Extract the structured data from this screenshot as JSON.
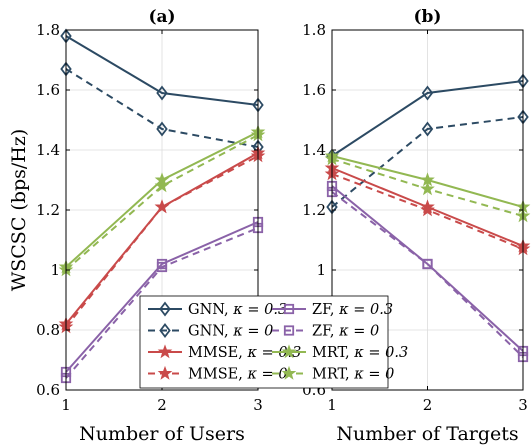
{
  "chart_data": [
    {
      "type": "line",
      "title": "(a)",
      "xlabel": "Number of Users",
      "ylabel": "WSCSC (bps/Hz)",
      "xlim": [
        1,
        3
      ],
      "ylim": [
        0.6,
        1.8
      ],
      "x": [
        1,
        2,
        3
      ],
      "xticks": [
        "1",
        "2",
        "3"
      ],
      "yticks": [
        "0.6",
        "0.8",
        "1",
        "1.2",
        "1.4",
        "1.6",
        "1.8"
      ],
      "grid": true,
      "series": [
        {
          "name": "GNN, κ = 0.3",
          "color": "#2c4a63",
          "marker": "diamond",
          "dash": false,
          "values": [
            1.78,
            1.59,
            1.55
          ]
        },
        {
          "name": "GNN, κ = 0",
          "color": "#2c4a63",
          "marker": "diamond",
          "dash": true,
          "values": [
            1.67,
            1.47,
            1.41
          ]
        },
        {
          "name": "MMSE, κ = 0.3",
          "color": "#c94a4a",
          "marker": "star",
          "dash": false,
          "values": [
            0.82,
            1.21,
            1.39
          ]
        },
        {
          "name": "MMSE, κ = 0",
          "color": "#c94a4a",
          "marker": "star",
          "dash": true,
          "values": [
            0.81,
            1.21,
            1.38
          ]
        },
        {
          "name": "ZF, κ = 0.3",
          "color": "#8a62a8",
          "marker": "square",
          "dash": false,
          "values": [
            0.66,
            1.02,
            1.16
          ]
        },
        {
          "name": "ZF, κ = 0",
          "color": "#8a62a8",
          "marker": "square",
          "dash": true,
          "values": [
            0.64,
            1.01,
            1.14
          ]
        },
        {
          "name": "MRT, κ = 0.3",
          "color": "#92b852",
          "marker": "star",
          "dash": false,
          "values": [
            1.01,
            1.3,
            1.46
          ]
        },
        {
          "name": "MRT, κ = 0",
          "color": "#92b852",
          "marker": "star",
          "dash": true,
          "values": [
            1.0,
            1.28,
            1.45
          ]
        }
      ]
    },
    {
      "type": "line",
      "title": "(b)",
      "xlabel": "Number of Targets",
      "ylabel": "",
      "xlim": [
        1,
        3
      ],
      "ylim": [
        0.6,
        1.8
      ],
      "x": [
        1,
        2,
        3
      ],
      "xticks": [
        "1",
        "2",
        "3"
      ],
      "yticks": [
        "0.6",
        "0.8",
        "1",
        "1.2",
        "1.4",
        "1.6",
        "1.8"
      ],
      "grid": true,
      "series": [
        {
          "name": "GNN, κ = 0.3",
          "color": "#2c4a63",
          "marker": "diamond",
          "dash": false,
          "values": [
            1.38,
            1.59,
            1.63
          ]
        },
        {
          "name": "GNN, κ = 0",
          "color": "#2c4a63",
          "marker": "diamond",
          "dash": true,
          "values": [
            1.21,
            1.47,
            1.51
          ]
        },
        {
          "name": "MMSE, κ = 0.3",
          "color": "#c94a4a",
          "marker": "star",
          "dash": false,
          "values": [
            1.34,
            1.21,
            1.08
          ]
        },
        {
          "name": "MMSE, κ = 0",
          "color": "#c94a4a",
          "marker": "star",
          "dash": true,
          "values": [
            1.32,
            1.2,
            1.07
          ]
        },
        {
          "name": "ZF, κ = 0.3",
          "color": "#8a62a8",
          "marker": "square",
          "dash": false,
          "values": [
            1.28,
            1.02,
            0.73
          ]
        },
        {
          "name": "ZF, κ = 0",
          "color": "#8a62a8",
          "marker": "square",
          "dash": true,
          "values": [
            1.26,
            1.02,
            0.71
          ]
        },
        {
          "name": "MRT, κ = 0.3",
          "color": "#92b852",
          "marker": "star",
          "dash": false,
          "values": [
            1.38,
            1.3,
            1.21
          ]
        },
        {
          "name": "MRT, κ = 0",
          "color": "#92b852",
          "marker": "star",
          "dash": true,
          "values": [
            1.37,
            1.27,
            1.18
          ]
        }
      ]
    }
  ],
  "legend": {
    "placement": "bottom-center",
    "items": [
      {
        "label": "GNN,",
        "kappa": "κ = 0.3",
        "series": 0
      },
      {
        "label": "ZF,",
        "kappa": "κ = 0.3",
        "series": 4
      },
      {
        "label": "GNN,",
        "kappa": "κ = 0",
        "series": 1
      },
      {
        "label": "ZF,",
        "kappa": "κ = 0",
        "series": 5
      },
      {
        "label": "MMSE,",
        "kappa": "κ = 0.3",
        "series": 2
      },
      {
        "label": "MRT,",
        "kappa": "κ = 0.3",
        "series": 6
      },
      {
        "label": "MMSE,",
        "kappa": "κ = 0",
        "series": 3
      },
      {
        "label": "MRT,",
        "kappa": "κ = 0",
        "series": 7
      }
    ]
  }
}
